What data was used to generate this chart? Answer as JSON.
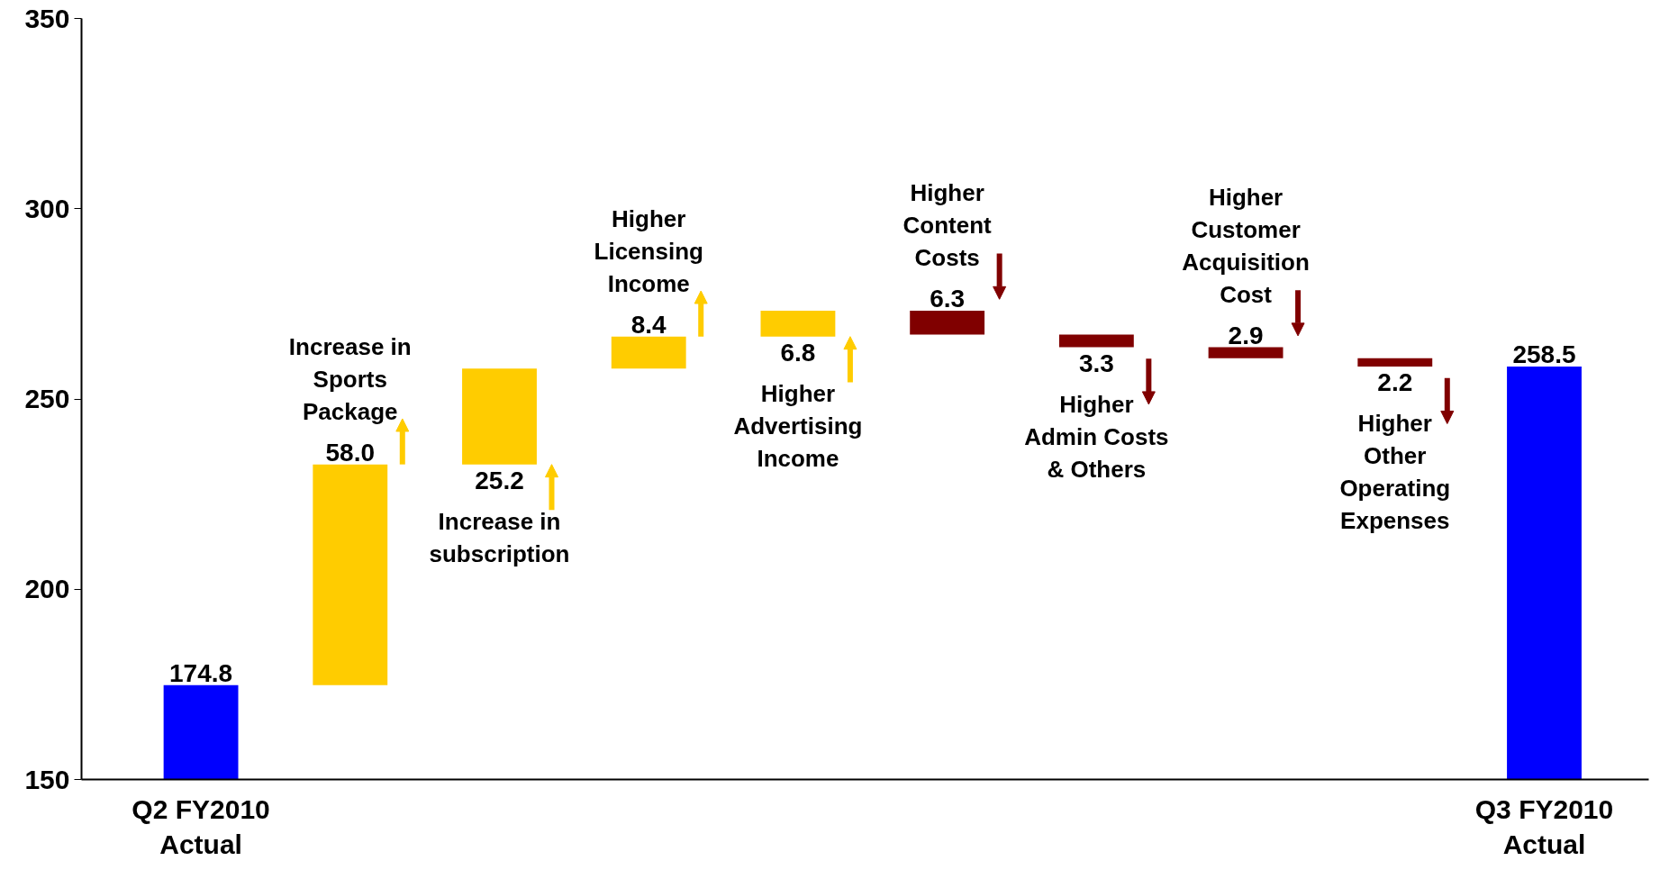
{
  "chart_data": {
    "type": "bar",
    "categories": [
      "Q2 FY2010\nActual",
      null,
      null,
      null,
      null,
      null,
      null,
      null,
      null,
      "Q3 FY2010\nActual"
    ],
    "values": [
      174.8,
      58.0,
      25.2,
      8.4,
      6.8,
      -6.3,
      -3.3,
      -2.9,
      -2.2,
      258.5
    ],
    "base": [
      null,
      174.8,
      232.8,
      258.0,
      266.4,
      273.2,
      266.9,
      263.6,
      260.7,
      null
    ],
    "colors": [
      "#0000ff",
      "#ffcc00",
      "#ffcc00",
      "#ffcc00",
      "#ffcc00",
      "#800000",
      "#800000",
      "#800000",
      "#800000",
      "#0000ff"
    ],
    "value_labels": [
      "174.8",
      "58.0",
      "25.2",
      "8.4",
      "6.8",
      "6.3",
      "3.3",
      "2.9",
      "2.2",
      "258.5"
    ],
    "annotations": [
      "Increase in\nSports\nPackage",
      "Increase in\nsubscription",
      "Higher\nLicensing\nIncome",
      "Higher\nAdvertising\nIncome",
      "Higher\nContent\nCosts",
      "Higher\nAdmin Costs\n& Others",
      "Higher\nCustomer\nAcquisition\nCost",
      "Higher\nOther\nOperating\nExpenses"
    ],
    "ylim": [
      150,
      350
    ],
    "yticks": [
      150,
      200,
      250,
      300,
      350
    ],
    "grid": false
  }
}
